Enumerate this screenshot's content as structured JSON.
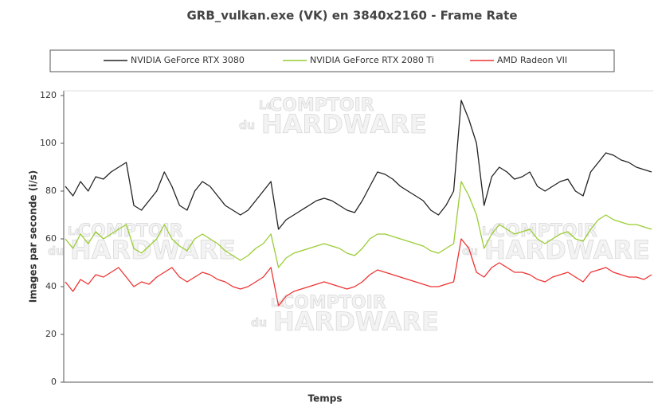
{
  "chart_data": {
    "type": "line",
    "title": "GRB_vulkan.exe (VK) en 3840x2160 - Frame Rate",
    "x_label": "Temps",
    "y_label": "Images par seconde (i/s)",
    "watermark": [
      "Le",
      "COMPTOIR",
      "du",
      "HARDWARE"
    ],
    "categories": [
      null,
      null,
      null,
      null,
      null,
      null,
      null,
      null,
      null,
      null,
      null,
      null,
      null,
      null,
      null,
      null,
      null,
      null,
      null,
      null,
      null,
      null,
      null,
      null,
      null,
      null,
      null,
      null,
      null,
      null,
      null,
      null,
      null,
      null,
      null,
      null,
      null,
      null,
      null,
      null,
      null,
      null,
      null,
      null,
      null,
      null,
      null,
      null,
      null,
      null,
      null,
      null,
      null,
      null,
      null,
      null,
      null,
      null,
      null,
      null,
      null,
      null,
      null,
      null,
      null,
      null,
      null,
      null,
      null,
      null,
      null,
      null,
      null,
      null,
      null,
      null,
      null,
      null
    ],
    "series": [
      {
        "name": "NVIDIA GeForce RTX 3080",
        "color": "#222222",
        "values": [
          82,
          78,
          84,
          80,
          86,
          85,
          88,
          90,
          92,
          74,
          72,
          76,
          80,
          88,
          82,
          74,
          72,
          80,
          84,
          82,
          78,
          74,
          72,
          70,
          72,
          76,
          80,
          84,
          64,
          68,
          70,
          72,
          74,
          76,
          77,
          76,
          74,
          72,
          71,
          76,
          82,
          88,
          87,
          85,
          82,
          80,
          78,
          76,
          72,
          70,
          74,
          80,
          118,
          110,
          100,
          74,
          86,
          90,
          88,
          85,
          86,
          88,
          82,
          80,
          82,
          84,
          85,
          80,
          78,
          88,
          92,
          96,
          95,
          93,
          92,
          90,
          89,
          88
        ]
      },
      {
        "name": "NVIDIA GeForce RTX 2080 Ti",
        "color": "#99cc33",
        "values": [
          60,
          56,
          62,
          58,
          63,
          60,
          62,
          64,
          66,
          56,
          54,
          57,
          60,
          66,
          60,
          57,
          55,
          60,
          62,
          60,
          58,
          55,
          53,
          51,
          53,
          56,
          58,
          62,
          48,
          52,
          54,
          55,
          56,
          57,
          58,
          57,
          56,
          54,
          53,
          56,
          60,
          62,
          62,
          61,
          60,
          59,
          58,
          57,
          55,
          54,
          56,
          58,
          84,
          78,
          70,
          56,
          62,
          66,
          64,
          62,
          63,
          64,
          60,
          58,
          60,
          62,
          63,
          60,
          59,
          64,
          68,
          70,
          68,
          67,
          66,
          66,
          65,
          64
        ]
      },
      {
        "name": "AMD Radeon VII",
        "color": "#ee3333",
        "values": [
          42,
          38,
          43,
          41,
          45,
          44,
          46,
          48,
          44,
          40,
          42,
          41,
          44,
          46,
          48,
          44,
          42,
          44,
          46,
          45,
          43,
          42,
          40,
          39,
          40,
          42,
          44,
          48,
          32,
          36,
          38,
          39,
          40,
          41,
          42,
          41,
          40,
          39,
          40,
          42,
          45,
          47,
          46,
          45,
          44,
          43,
          42,
          41,
          40,
          40,
          41,
          42,
          60,
          56,
          46,
          44,
          48,
          50,
          48,
          46,
          46,
          45,
          43,
          42,
          44,
          45,
          46,
          44,
          42,
          46,
          47,
          48,
          46,
          45,
          44,
          44,
          43,
          45
        ]
      }
    ],
    "ylim": [
      0,
      122
    ],
    "yticks": [
      0,
      20,
      40,
      60,
      80,
      100,
      120
    ],
    "grid": false
  }
}
